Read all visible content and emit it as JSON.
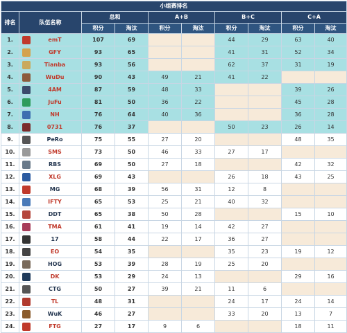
{
  "title": "小组赛排名",
  "headers": {
    "rank": "排名",
    "team": "队伍名称",
    "total": "总和",
    "ab": "A+B",
    "bc": "B+C",
    "ca": "C+A",
    "points": "积分",
    "kills": "淘汰"
  },
  "colors": {
    "header": "#28456c",
    "qualified": "#a8e0e3",
    "empty": "#f7ead9",
    "red_name": "#c0392b"
  },
  "rows": [
    {
      "rank": "1.",
      "team": "emT",
      "tp": "107",
      "tk": "69",
      "abp": "",
      "abk": "",
      "bcp": "44",
      "bck": "29",
      "cap": "63",
      "cak": "40",
      "logo": "#c0392b"
    },
    {
      "rank": "2.",
      "team": "GFY",
      "tp": "93",
      "tk": "65",
      "abp": "",
      "abk": "",
      "bcp": "41",
      "bck": "31",
      "cap": "52",
      "cak": "34",
      "logo": "#d4a24c"
    },
    {
      "rank": "3.",
      "team": "Tianba",
      "tp": "93",
      "tk": "56",
      "abp": "",
      "abk": "",
      "bcp": "62",
      "bck": "37",
      "cap": "31",
      "cak": "19",
      "logo": "#c9a95c"
    },
    {
      "rank": "4.",
      "team": "WuDu",
      "tp": "90",
      "tk": "43",
      "abp": "49",
      "abk": "21",
      "bcp": "41",
      "bck": "22",
      "cap": "",
      "cak": "",
      "logo": "#8c5a3c"
    },
    {
      "rank": "5.",
      "team": "4AM",
      "tp": "87",
      "tk": "59",
      "abp": "48",
      "abk": "33",
      "bcp": "",
      "bck": "",
      "cap": "39",
      "cak": "26",
      "logo": "#3a4a6b"
    },
    {
      "rank": "6.",
      "team": "JuFu",
      "tp": "81",
      "tk": "50",
      "abp": "36",
      "abk": "22",
      "bcp": "",
      "bck": "",
      "cap": "45",
      "cak": "28",
      "logo": "#2e9c5c"
    },
    {
      "rank": "7.",
      "team": "NH",
      "tp": "76",
      "tk": "64",
      "abp": "40",
      "abk": "36",
      "bcp": "",
      "bck": "",
      "cap": "36",
      "cak": "28",
      "logo": "#3d6fb0"
    },
    {
      "rank": "8.",
      "team": "0731",
      "tp": "76",
      "tk": "37",
      "abp": "",
      "abk": "",
      "bcp": "50",
      "bck": "23",
      "cap": "26",
      "cak": "14",
      "logo": "#7a2a2a"
    },
    {
      "rank": "9.",
      "team": "PeRo",
      "tp": "75",
      "tk": "55",
      "abp": "27",
      "abk": "20",
      "bcp": "",
      "bck": "",
      "cap": "48",
      "cak": "35",
      "logo": "#555555"
    },
    {
      "rank": "10.",
      "team": "SMS",
      "tp": "73",
      "tk": "50",
      "abp": "46",
      "abk": "33",
      "bcp": "27",
      "bck": "17",
      "cap": "",
      "cak": "",
      "logo": "#9a9a9a"
    },
    {
      "rank": "11.",
      "team": "RBS",
      "tp": "69",
      "tk": "50",
      "abp": "27",
      "abk": "18",
      "bcp": "",
      "bck": "",
      "cap": "42",
      "cak": "32",
      "logo": "#6a7a8a"
    },
    {
      "rank": "12.",
      "team": "XLG",
      "tp": "69",
      "tk": "43",
      "abp": "",
      "abk": "",
      "bcp": "26",
      "bck": "18",
      "cap": "43",
      "cak": "25",
      "logo": "#2b5aa0"
    },
    {
      "rank": "13.",
      "team": "MG",
      "tp": "68",
      "tk": "39",
      "abp": "56",
      "abk": "31",
      "bcp": "12",
      "bck": "8",
      "cap": "",
      "cak": "",
      "logo": "#c0392b"
    },
    {
      "rank": "14.",
      "team": "IFTY",
      "tp": "65",
      "tk": "53",
      "abp": "25",
      "abk": "21",
      "bcp": "40",
      "bck": "32",
      "cap": "",
      "cak": "",
      "logo": "#4a7ab8"
    },
    {
      "rank": "15.",
      "team": "DDT",
      "tp": "65",
      "tk": "38",
      "abp": "50",
      "abk": "28",
      "bcp": "",
      "bck": "",
      "cap": "15",
      "cak": "10",
      "logo": "#b5463c"
    },
    {
      "rank": "16.",
      "team": "TMA",
      "tp": "61",
      "tk": "41",
      "abp": "19",
      "abk": "14",
      "bcp": "42",
      "bck": "27",
      "cap": "",
      "cak": "",
      "logo": "#a83d5a"
    },
    {
      "rank": "17.",
      "team": "17",
      "tp": "58",
      "tk": "44",
      "abp": "22",
      "abk": "17",
      "bcp": "36",
      "bck": "27",
      "cap": "",
      "cak": "",
      "logo": "#333333"
    },
    {
      "rank": "18.",
      "team": "EO",
      "tp": "54",
      "tk": "35",
      "abp": "",
      "abk": "",
      "bcp": "35",
      "bck": "23",
      "cap": "19",
      "cak": "12",
      "logo": "#444444"
    },
    {
      "rank": "19.",
      "team": "HOG",
      "tp": "53",
      "tk": "39",
      "abp": "28",
      "abk": "19",
      "bcp": "25",
      "bck": "20",
      "cap": "",
      "cak": "",
      "logo": "#7a6a5a"
    },
    {
      "rank": "20.",
      "team": "DK",
      "tp": "53",
      "tk": "29",
      "abp": "24",
      "abk": "13",
      "bcp": "",
      "bck": "",
      "cap": "29",
      "cak": "16",
      "logo": "#1f3a5a"
    },
    {
      "rank": "21.",
      "team": "CTG",
      "tp": "50",
      "tk": "27",
      "abp": "39",
      "abk": "21",
      "bcp": "11",
      "bck": "6",
      "cap": "",
      "cak": "",
      "logo": "#555555"
    },
    {
      "rank": "22.",
      "team": "TL",
      "tp": "48",
      "tk": "31",
      "abp": "",
      "abk": "",
      "bcp": "24",
      "bck": "17",
      "cap": "24",
      "cak": "14",
      "logo": "#b03a2e"
    },
    {
      "rank": "23.",
      "team": "WuK",
      "tp": "46",
      "tk": "27",
      "abp": "",
      "abk": "",
      "bcp": "33",
      "bck": "20",
      "cap": "13",
      "cak": "7",
      "logo": "#8a5a2a"
    },
    {
      "rank": "24.",
      "team": "FTG",
      "tp": "27",
      "tk": "17",
      "abp": "9",
      "abk": "6",
      "bcp": "",
      "bck": "",
      "cap": "18",
      "cak": "11",
      "logo": "#c0392b"
    }
  ]
}
